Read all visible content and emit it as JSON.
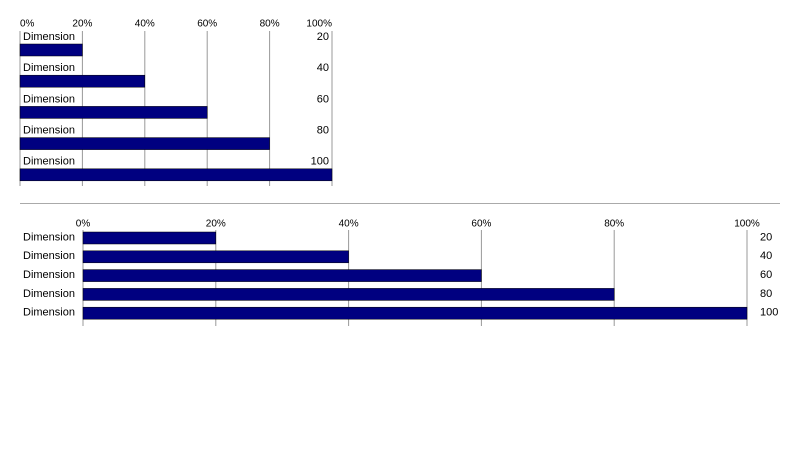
{
  "chart_data": [
    {
      "type": "bar",
      "categories": [
        "Dimension",
        "Dimension",
        "Dimension",
        "Dimension",
        "Dimension"
      ],
      "values": [
        20,
        40,
        60,
        80,
        100
      ],
      "color": "#000080",
      "xlim": [
        0,
        100
      ],
      "xticks": [
        {
          "value": 0,
          "label": "0%"
        },
        {
          "value": 20,
          "label": "20%"
        },
        {
          "value": 40,
          "label": "40%"
        },
        {
          "value": 60,
          "label": "60%"
        },
        {
          "value": 80,
          "label": "80%"
        },
        {
          "value": 100,
          "label": "100%"
        }
      ],
      "grid": true
    },
    {
      "type": "bar",
      "categories": [
        "Dimension",
        "Dimension",
        "Dimension",
        "Dimension",
        "Dimension"
      ],
      "values": [
        20,
        40,
        60,
        80,
        100
      ],
      "color": "#000080",
      "xlim": [
        0,
        100
      ],
      "xticks": [
        {
          "value": 0,
          "label": "0%"
        },
        {
          "value": 20,
          "label": "20%"
        },
        {
          "value": 40,
          "label": "40%"
        },
        {
          "value": 60,
          "label": "60%"
        },
        {
          "value": 80,
          "label": "80%"
        },
        {
          "value": 100,
          "label": "100%"
        }
      ],
      "grid": true
    }
  ]
}
